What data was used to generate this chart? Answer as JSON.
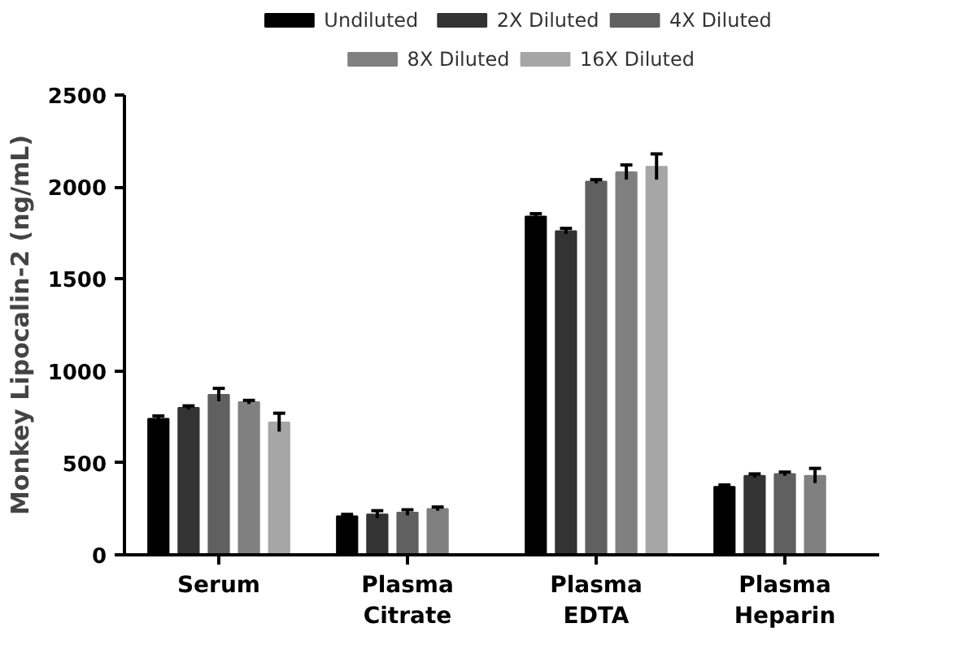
{
  "chart_data": {
    "type": "bar",
    "ylabel": "Monkey Lipocalin-2 (ng/mL)",
    "categories": [
      "Serum",
      "Plasma\nCitrate",
      "Plasma\nEDTA",
      "Plasma\nHeparin"
    ],
    "series": [
      {
        "name": "Undiluted",
        "color": "#000000",
        "values": [
          740,
          210,
          1840,
          370
        ],
        "errors": [
          15,
          10,
          15,
          10
        ]
      },
      {
        "name": "2X Diluted",
        "color": "#333333",
        "values": [
          800,
          220,
          1760,
          430
        ],
        "errors": [
          10,
          20,
          15,
          10
        ]
      },
      {
        "name": "4X Diluted",
        "color": "#606060",
        "values": [
          870,
          230,
          2030,
          440
        ],
        "errors": [
          35,
          15,
          10,
          10
        ]
      },
      {
        "name": "8X Diluted",
        "color": "#808080",
        "values": [
          830,
          250,
          2080,
          430
        ],
        "errors": [
          10,
          10,
          40,
          40
        ]
      },
      {
        "name": "16X Diluted",
        "color": "#a6a6a6",
        "values": [
          720,
          null,
          2110,
          null
        ],
        "errors": [
          50,
          null,
          70,
          null
        ]
      }
    ],
    "ylim": [
      0,
      2500
    ],
    "yticks": [
      0,
      500,
      1000,
      1500,
      2000,
      2500
    ],
    "grid": false,
    "legend": "top"
  }
}
